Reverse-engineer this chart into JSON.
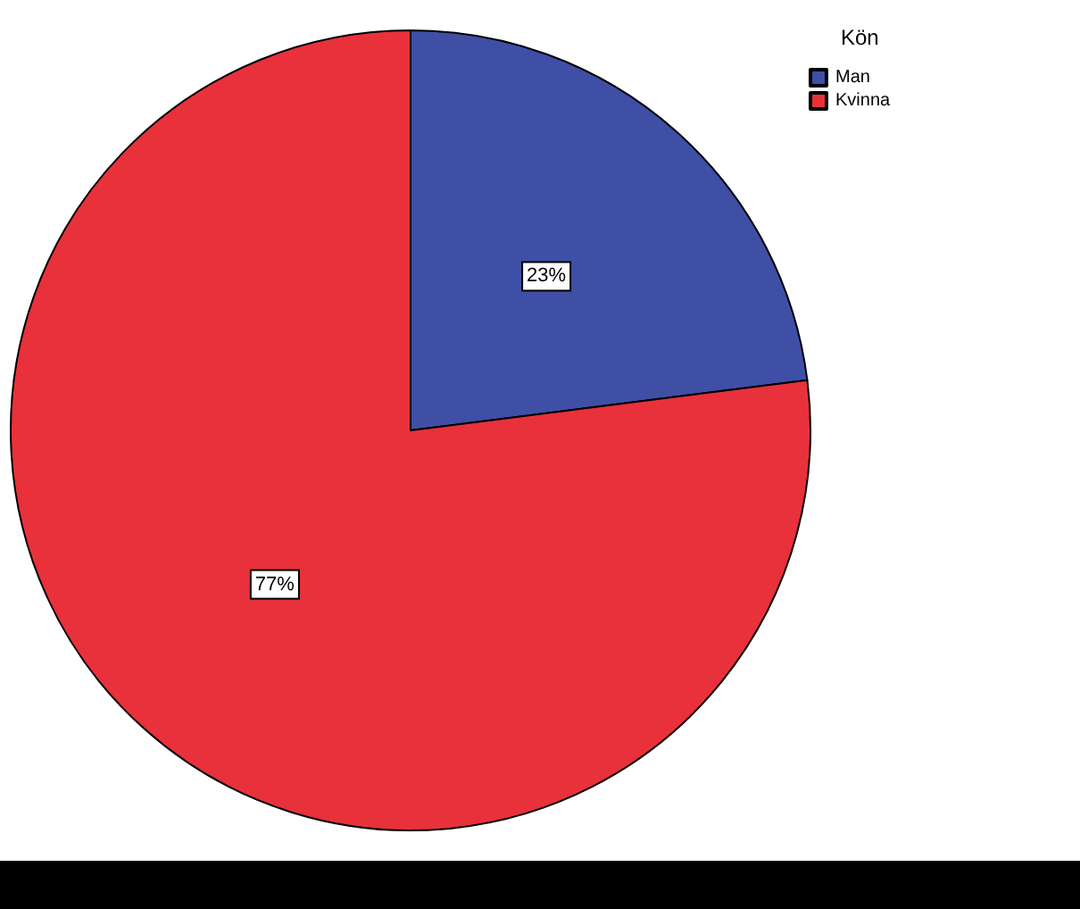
{
  "chart_data": {
    "type": "pie",
    "legend_title": "Kön",
    "categories": [
      "Man",
      "Kvinna"
    ],
    "values": [
      23,
      77
    ],
    "colors": [
      "#3f4fa6",
      "#e8313b"
    ],
    "value_labels": [
      "23%",
      "77%"
    ],
    "legend": "top right"
  }
}
